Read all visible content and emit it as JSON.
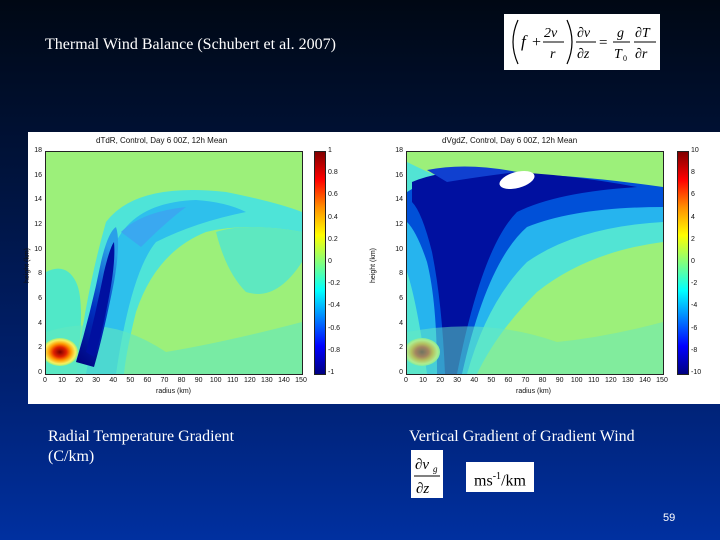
{
  "slide": {
    "title": "Thermal Wind Balance (Schubert et al. 2007)",
    "page_number": "59"
  },
  "equation": {
    "f": "f",
    "two_v": "2v",
    "r_den": "r",
    "dv": "∂v",
    "dz": "∂z",
    "g": "g",
    "T0": "T",
    "T0_sub": "0",
    "dT": "∂T",
    "dr": "∂r"
  },
  "left_panel": {
    "plot_title": "dTdR, Control, Day 6 00Z, 12h Mean",
    "ylabel": "height (km)",
    "xlabel": "radius (km)",
    "yticks": [
      "18",
      "16",
      "14",
      "12",
      "10",
      "8",
      "6",
      "4",
      "2",
      "0"
    ],
    "xticks": [
      "0",
      "10",
      "20",
      "30",
      "40",
      "50",
      "60",
      "70",
      "80",
      "90",
      "100",
      "110",
      "120",
      "130",
      "140",
      "150"
    ],
    "cbar_ticks": [
      "1",
      "0.8",
      "0.6",
      "0.4",
      "0.2",
      "0",
      "-0.2",
      "-0.4",
      "-0.6",
      "-0.8",
      "-1"
    ],
    "caption_line1": "Radial Temperature Gradient",
    "caption_line2": "(C/km)"
  },
  "right_panel": {
    "plot_title": "dVgdZ, Control, Day 6 00Z, 12h Mean",
    "ylabel": "height (km)",
    "xlabel": "radius (km)",
    "yticks": [
      "18",
      "16",
      "14",
      "12",
      "10",
      "8",
      "6",
      "4",
      "2",
      "0"
    ],
    "xticks": [
      "0",
      "10",
      "20",
      "30",
      "40",
      "50",
      "60",
      "70",
      "80",
      "90",
      "100",
      "110",
      "120",
      "130",
      "140",
      "150"
    ],
    "cbar_ticks": [
      "10",
      "8",
      "6",
      "4",
      "2",
      "0",
      "-2",
      "-4",
      "-6",
      "-8",
      "-10"
    ],
    "caption": "Vertical Gradient of Gradient Wind",
    "deriv_num": "∂v",
    "deriv_num_sub": "g",
    "deriv_den": "∂z",
    "unit_base": "ms",
    "unit_sup": "-1",
    "unit_tail": "/km"
  },
  "colors": {
    "jet_red": "#c00000",
    "jet_blue": "#00009a",
    "field_green": "#9cf07a",
    "field_cyan": "#3fe3d6"
  }
}
